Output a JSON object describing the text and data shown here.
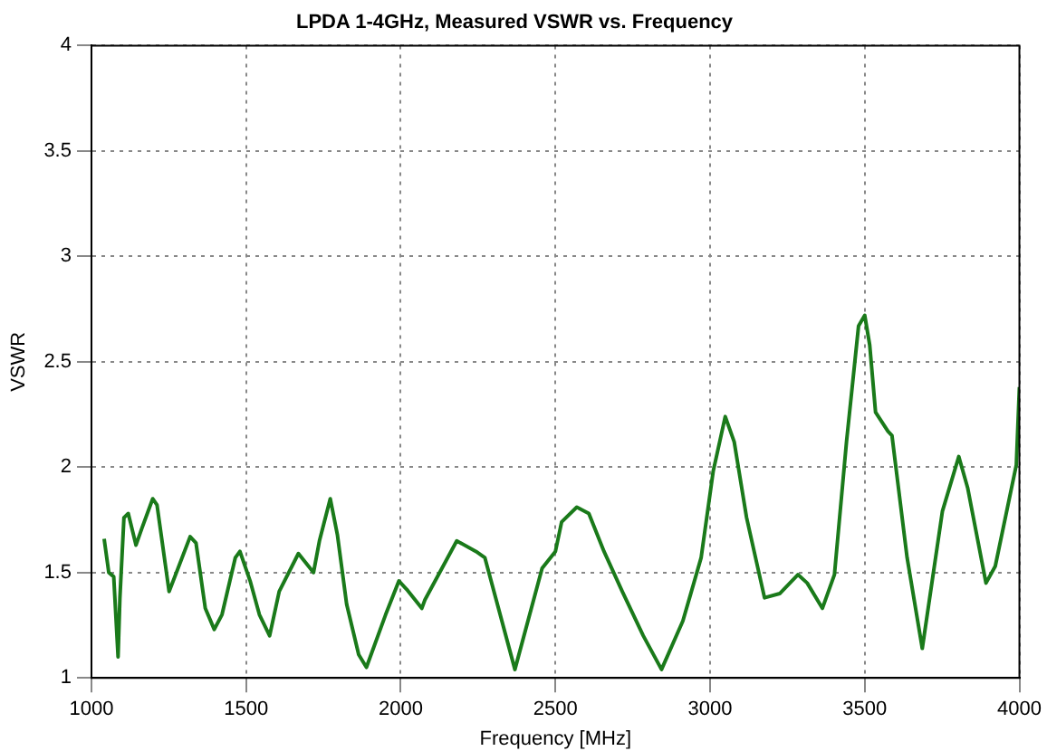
{
  "chart_data": {
    "type": "line",
    "title": "LPDA 1-4GHz, Measured VSWR vs. Frequency",
    "xlabel": "Frequency [MHz]",
    "ylabel": "VSWR",
    "x": [
      1041,
      1056,
      1072,
      1086,
      1092,
      1105,
      1119,
      1144,
      1163,
      1198,
      1212,
      1251,
      1280,
      1319,
      1338,
      1368,
      1397,
      1422,
      1465,
      1480,
      1513,
      1543,
      1576,
      1607,
      1669,
      1718,
      1737,
      1772,
      1795,
      1825,
      1864,
      1889,
      1951,
      1994,
      2019,
      2068,
      2078,
      2181,
      2243,
      2272,
      2369,
      2457,
      2500,
      2520,
      2569,
      2608,
      2657,
      2716,
      2784,
      2843,
      2912,
      2971,
      3010,
      3049,
      3078,
      3118,
      3176,
      3225,
      3284,
      3314,
      3363,
      3402,
      3441,
      3480,
      3500,
      3516,
      3535,
      3575,
      3588,
      3637,
      3686,
      3751,
      3804,
      3833,
      3892,
      3922,
      3990,
      4000
    ],
    "series": [
      {
        "color": "#1a7a1a",
        "values": [
          1.66,
          1.5,
          1.48,
          1.1,
          1.38,
          1.76,
          1.78,
          1.63,
          1.71,
          1.85,
          1.82,
          1.41,
          1.52,
          1.67,
          1.64,
          1.33,
          1.23,
          1.3,
          1.57,
          1.6,
          1.46,
          1.3,
          1.2,
          1.41,
          1.59,
          1.5,
          1.65,
          1.85,
          1.68,
          1.35,
          1.11,
          1.05,
          1.3,
          1.46,
          1.42,
          1.33,
          1.37,
          1.65,
          1.6,
          1.57,
          1.04,
          1.52,
          1.6,
          1.74,
          1.81,
          1.78,
          1.6,
          1.41,
          1.2,
          1.04,
          1.27,
          1.57,
          1.98,
          2.24,
          2.12,
          1.76,
          1.38,
          1.4,
          1.49,
          1.45,
          1.33,
          1.49,
          2.12,
          2.67,
          2.72,
          2.58,
          2.26,
          2.17,
          2.15,
          1.57,
          1.14,
          1.79,
          2.05,
          1.9,
          1.45,
          1.53,
          2.01,
          2.38
        ]
      }
    ],
    "xlim": [
      1000,
      4000
    ],
    "ylim": [
      1,
      4
    ],
    "xticks": [
      1000,
      1500,
      2000,
      2500,
      3000,
      3500,
      4000
    ],
    "yticks": [
      1,
      1.5,
      2,
      2.5,
      3,
      3.5,
      4
    ],
    "grid": true,
    "line_style": "solid",
    "marker": "none",
    "legend": false
  }
}
